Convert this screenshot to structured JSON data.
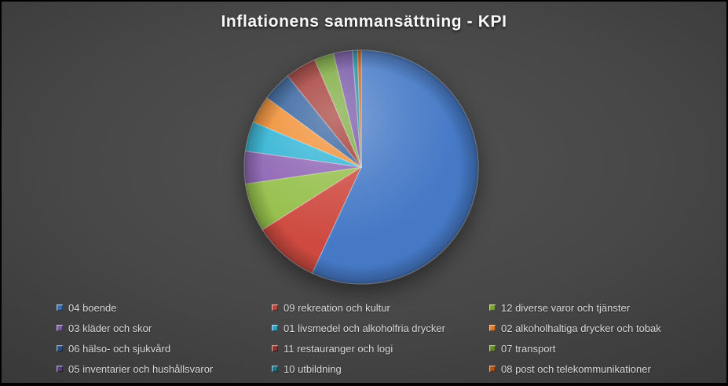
{
  "chart_data": {
    "type": "pie",
    "title": "Inflationens sammansättning - KPI",
    "legend_position": "bottom",
    "legend_columns": 3,
    "start_angle": "12 o'clock",
    "direction": "clockwise",
    "data_labels_shown": false,
    "slices": [
      {
        "label": "04 boende",
        "value_pct": 56.9,
        "color": "#4579C6",
        "legend_color": "#3C6EB0"
      },
      {
        "label": "09 rekreation och kultur",
        "value_pct": 9.1,
        "color": "#CE4A40",
        "legend_color": "#B8463E"
      },
      {
        "label": "12 diverse varor och tjänster",
        "value_pct": 6.7,
        "color": "#94BF4A",
        "legend_color": "#7DA337"
      },
      {
        "label": "03 kläder och skor",
        "value_pct": 4.5,
        "color": "#8D64B4",
        "legend_color": "#7C59A2"
      },
      {
        "label": "01 livsmedel och alkoholfria drycker",
        "value_pct": 4.1,
        "color": "#2FB3D4",
        "legend_color": "#2FA3C4"
      },
      {
        "label": "02 alkoholhaltiga drycker och tobak",
        "value_pct": 3.8,
        "color": "#F08C2E",
        "legend_color": "#DE7E28"
      },
      {
        "label": "06 hälso- och sjukvård",
        "value_pct": 4.1,
        "color": "#2E5E9C",
        "legend_color": "#2A4F82"
      },
      {
        "label": "11 restauranger och logi",
        "value_pct": 4.3,
        "color": "#A23530",
        "legend_color": "#8F322C"
      },
      {
        "label": "07 transport",
        "value_pct": 2.7,
        "color": "#78A838",
        "legend_color": "#648C28"
      },
      {
        "label": "05 inventarier och hushållsvaror",
        "value_pct": 2.6,
        "color": "#7253A3",
        "legend_color": "#53407A"
      },
      {
        "label": "10 utbildning",
        "value_pct": 0.7,
        "color": "#1F8A9E",
        "legend_color": "#1F7389"
      },
      {
        "label": "08 post och telekommunikationer",
        "value_pct": 0.5,
        "color": "#C05A14",
        "legend_color": "#AC5212"
      }
    ],
    "theme": {
      "background_center": "#4F4F4F",
      "background_edge": "#232323",
      "border_color": "#000000",
      "title_color": "#F7F7F7",
      "legend_text_color": "#D9D9D9"
    }
  }
}
